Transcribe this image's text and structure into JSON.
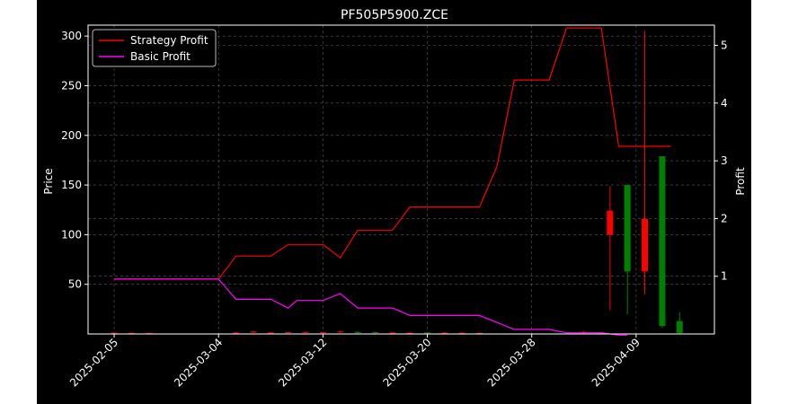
{
  "chart_data": {
    "type": "candlestick+line",
    "title": "PF505P5900.ZCE",
    "xlabel": "",
    "ylabel_left": "Price",
    "ylabel_right": "Profit",
    "grid": true,
    "legend_position": "upper-left",
    "background": "#000000",
    "colors": {
      "up": "#008000",
      "down": "#ff0000",
      "strategy": "#ff0000",
      "basic": "#ff00ff",
      "grid": "#808080",
      "text": "#ffffff"
    },
    "x_ticks": [
      "2025-02-05",
      "2025-03-04",
      "2025-03-12",
      "2025-03-20",
      "2025-03-28",
      "2025-04-09"
    ],
    "y_left_ticks": [
      50,
      100,
      150,
      200,
      250,
      300
    ],
    "y_left_range": [
      0,
      311
    ],
    "y_right_ticks": [
      1,
      2,
      3,
      4,
      5
    ],
    "y_right_range": [
      0,
      5.35
    ],
    "series": [
      {
        "name": "Strategy Profit",
        "color": "#ff0000",
        "points": [
          [
            0,
            0.95
          ],
          [
            12,
            0.95
          ],
          [
            14,
            1.35
          ],
          [
            18,
            1.35
          ],
          [
            20,
            1.55
          ],
          [
            24,
            1.55
          ],
          [
            26,
            1.32
          ],
          [
            28,
            1.8
          ],
          [
            32,
            1.8
          ],
          [
            34,
            2.2
          ],
          [
            42,
            2.2
          ],
          [
            44,
            2.9
          ],
          [
            46,
            4.4
          ],
          [
            50,
            4.4
          ],
          [
            52,
            5.3
          ],
          [
            56,
            5.3
          ],
          [
            58,
            3.25
          ],
          [
            64,
            3.25
          ]
        ]
      },
      {
        "name": "Basic Profit",
        "color": "#ff00ff",
        "points": [
          [
            0,
            0.95
          ],
          [
            12,
            0.95
          ],
          [
            14,
            0.6
          ],
          [
            18,
            0.6
          ],
          [
            20,
            0.45
          ],
          [
            21,
            0.58
          ],
          [
            24,
            0.58
          ],
          [
            26,
            0.7
          ],
          [
            28,
            0.45
          ],
          [
            32,
            0.45
          ],
          [
            34,
            0.32
          ],
          [
            42,
            0.32
          ],
          [
            46,
            0.08
          ],
          [
            50,
            0.08
          ],
          [
            52,
            0.02
          ],
          [
            56,
            0.02
          ],
          [
            58,
            -0.02
          ],
          [
            59,
            -0.02
          ]
        ]
      }
    ],
    "candles": [
      {
        "i": 0,
        "o": 1.2,
        "c": 1.0,
        "h": 1.5,
        "l": 0.5
      },
      {
        "i": 2,
        "o": 1.1,
        "c": 0.9,
        "h": 1.3,
        "l": 0.6
      },
      {
        "i": 4,
        "o": 1.0,
        "c": 0.8,
        "h": 1.2,
        "l": 0.5
      },
      {
        "i": 14,
        "o": 1.5,
        "c": 1.2,
        "h": 1.8,
        "l": 0.8
      },
      {
        "i": 16,
        "o": 2.5,
        "c": 1.5,
        "h": 3.0,
        "l": 1.0
      },
      {
        "i": 18,
        "o": 1.5,
        "c": 1.0,
        "h": 2.0,
        "l": 0.8
      },
      {
        "i": 20,
        "o": 1.8,
        "c": 1.2,
        "h": 2.2,
        "l": 0.8
      },
      {
        "i": 22,
        "o": 2.0,
        "c": 1.5,
        "h": 2.5,
        "l": 1.0
      },
      {
        "i": 24,
        "o": 1.8,
        "c": 1.2,
        "h": 2.2,
        "l": 0.9
      },
      {
        "i": 26,
        "o": 2.5,
        "c": 1.8,
        "h": 3.0,
        "l": 1.2
      },
      {
        "i": 28,
        "o": 1.0,
        "c": 2.0,
        "h": 2.5,
        "l": 0.8
      },
      {
        "i": 30,
        "o": 1.0,
        "c": 1.8,
        "h": 2.2,
        "l": 0.8
      },
      {
        "i": 32,
        "o": 1.5,
        "c": 1.0,
        "h": 1.8,
        "l": 0.7
      },
      {
        "i": 34,
        "o": 1.2,
        "c": 0.9,
        "h": 1.5,
        "l": 0.6
      },
      {
        "i": 36,
        "o": 1.0,
        "c": 1.5,
        "h": 1.8,
        "l": 0.8
      },
      {
        "i": 38,
        "o": 1.3,
        "c": 1.0,
        "h": 1.6,
        "l": 0.7
      },
      {
        "i": 40,
        "o": 1.2,
        "c": 0.9,
        "h": 1.4,
        "l": 0.6
      },
      {
        "i": 42,
        "o": 1.1,
        "c": 0.8,
        "h": 1.3,
        "l": 0.5
      },
      {
        "i": 54,
        "o": 2.0,
        "c": 1.0,
        "h": 3.0,
        "l": 0.5
      },
      {
        "i": 56,
        "o": 1.5,
        "c": 1.0,
        "h": 2.0,
        "l": 0.5
      },
      {
        "i": 57,
        "o": 124,
        "c": 100,
        "h": 149,
        "l": 24
      },
      {
        "i": 59,
        "o": 63,
        "c": 150,
        "h": 150,
        "l": 20
      },
      {
        "i": 61,
        "o": 116,
        "c": 63,
        "h": 305,
        "l": 40
      },
      {
        "i": 63,
        "o": 8,
        "c": 179,
        "h": 179,
        "l": 6
      },
      {
        "i": 65,
        "o": 1,
        "c": 13,
        "h": 22,
        "l": 0.5
      }
    ]
  }
}
